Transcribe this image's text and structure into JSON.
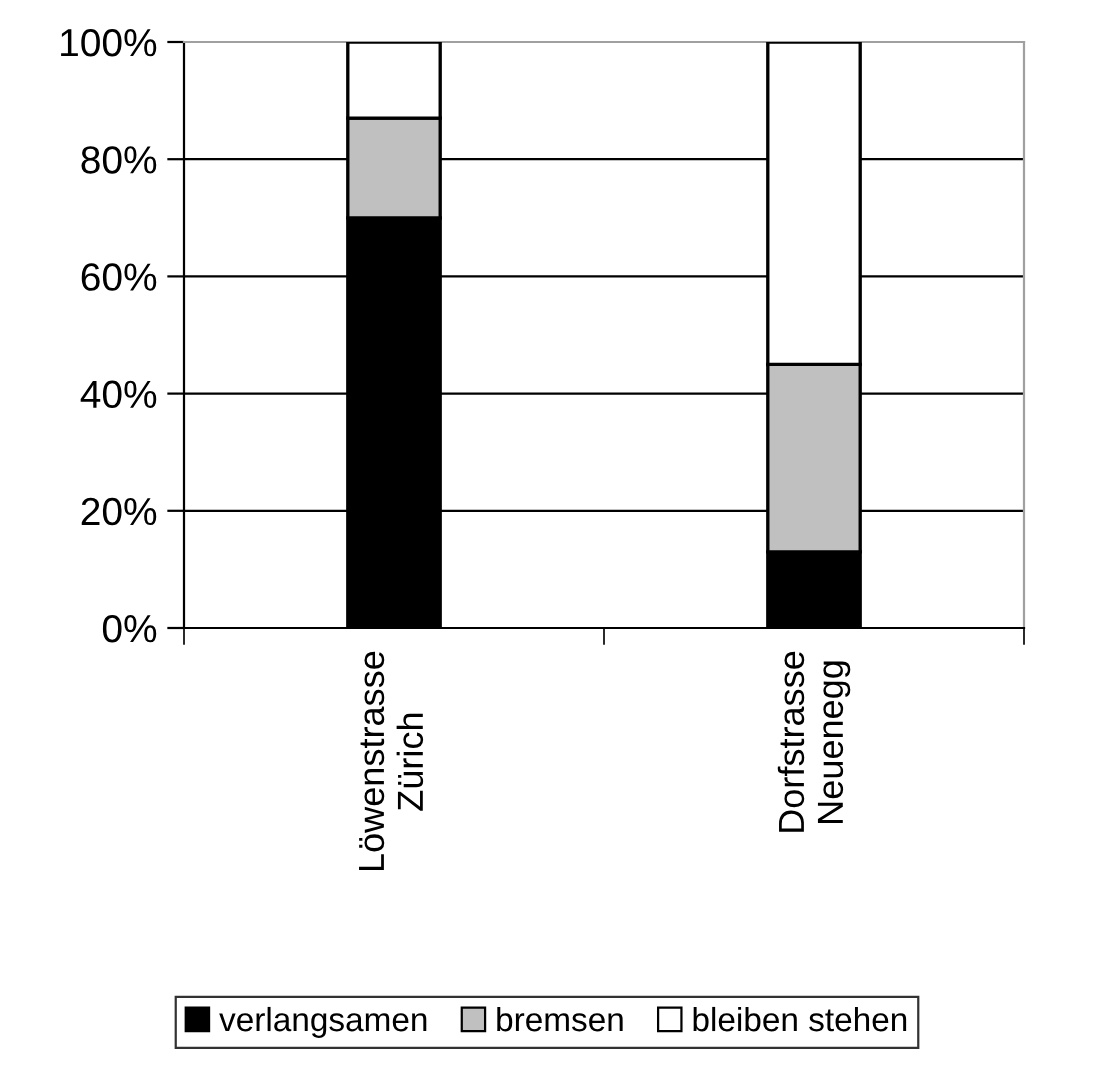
{
  "chart_data": {
    "type": "bar",
    "stacked": true,
    "categories": [
      "Löwenstrasse\nZürich",
      "Dorfstrasse\nNeuenegg"
    ],
    "series": [
      {
        "name": "verlangsamen",
        "color": "#000000",
        "values": [
          70,
          13
        ]
      },
      {
        "name": "bremsen",
        "color": "#c0c0c0",
        "values": [
          17,
          32
        ]
      },
      {
        "name": "bleiben stehen",
        "color": "#ffffff",
        "values": [
          13,
          55
        ]
      }
    ],
    "ylim": [
      0,
      100
    ],
    "yticks": [
      {
        "value": 0,
        "label": "0%"
      },
      {
        "value": 20,
        "label": "20%"
      },
      {
        "value": 40,
        "label": "40%"
      },
      {
        "value": 60,
        "label": "60%"
      },
      {
        "value": 80,
        "label": "80%"
      },
      {
        "value": 100,
        "label": "100%"
      }
    ],
    "grid": "y",
    "legend": "bottom"
  }
}
